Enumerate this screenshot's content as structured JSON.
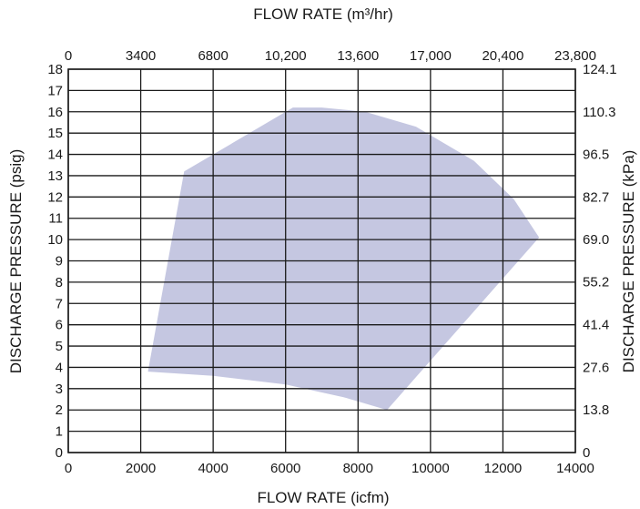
{
  "chart_data": {
    "type": "area",
    "title": "",
    "xlabel": "FLOW RATE (icfm)",
    "x2label": "FLOW RATE (m³/hr)",
    "ylabel": "DISCHARGE PRESSURE (psig)",
    "y2label": "DISCHARGE PRESSURE (kPa)",
    "xlim": [
      0,
      14000
    ],
    "ylim": [
      0,
      18
    ],
    "grid": true,
    "x_ticks": [
      0,
      2000,
      4000,
      6000,
      8000,
      10000,
      12000,
      14000
    ],
    "x_tick_labels": [
      "0",
      "2000",
      "4000",
      "6000",
      "8000",
      "10000",
      "12000",
      "14000"
    ],
    "x2_ticks": [
      0,
      3400,
      6800,
      10200,
      13600,
      17000,
      20400,
      23800
    ],
    "x2_tick_labels": [
      "0",
      "3400",
      "6800",
      "10,200",
      "13,600",
      "17,000",
      "20,400",
      "23,800"
    ],
    "y_ticks": [
      0,
      1,
      2,
      3,
      4,
      5,
      6,
      7,
      8,
      9,
      10,
      11,
      12,
      13,
      14,
      15,
      16,
      17,
      18
    ],
    "y_tick_labels": [
      "0",
      "1",
      "2",
      "3",
      "4",
      "5",
      "6",
      "7",
      "8",
      "9",
      "10",
      "11",
      "12",
      "13",
      "14",
      "15",
      "16",
      "17",
      "18"
    ],
    "y2_ticks": [
      0,
      13.8,
      27.6,
      41.4,
      55.2,
      69.0,
      82.7,
      96.5,
      110.3,
      124.1
    ],
    "y2_tick_labels": [
      "0",
      "13.8",
      "27.6",
      "41.4",
      "55.2",
      "69.0",
      "82.7",
      "96.5",
      "110.3",
      "124.1"
    ],
    "region_color": "#c5c7e1",
    "series": [
      {
        "name": "",
        "points": [
          [
            2200,
            3.8
          ],
          [
            3200,
            13.2
          ],
          [
            6200,
            16.2
          ],
          [
            7000,
            16.2
          ],
          [
            8200,
            16.0
          ],
          [
            9600,
            15.3
          ],
          [
            11200,
            13.7
          ],
          [
            12300,
            11.9
          ],
          [
            13000,
            10.1
          ],
          [
            8800,
            2.0
          ],
          [
            7600,
            2.6
          ],
          [
            6000,
            3.2
          ],
          [
            4000,
            3.6
          ],
          [
            2200,
            3.8
          ]
        ]
      }
    ]
  }
}
